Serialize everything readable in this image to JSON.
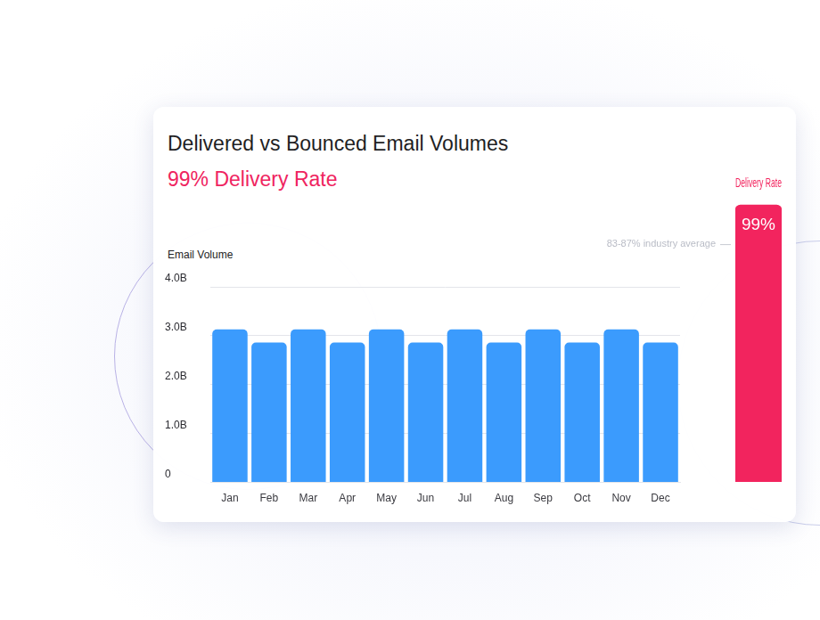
{
  "chart_data": [
    {
      "type": "bar",
      "title": "Delivered vs Bounced Email Volumes",
      "subtitle": "99% Delivery Rate",
      "y_label": "Email Volume",
      "categories": [
        "Jan",
        "Feb",
        "Mar",
        "Apr",
        "May",
        "Jun",
        "Jul",
        "Aug",
        "Sep",
        "Oct",
        "Nov",
        "Dec"
      ],
      "values": [
        3.13,
        2.86,
        3.13,
        2.86,
        3.13,
        2.86,
        3.13,
        2.86,
        3.13,
        2.86,
        3.13,
        2.86
      ],
      "color": "#3b9bfd",
      "ylim": [
        0,
        4
      ],
      "yticks": [
        0,
        {
          "value": 1,
          "label": "1.0B"
        },
        {
          "value": 2,
          "label": "2.0B"
        },
        {
          "value": 3,
          "label": "3.0B"
        },
        {
          "value": 4,
          "label": "4.0B"
        }
      ],
      "grid": true
    },
    {
      "type": "bar",
      "title": "Delivery Rate",
      "categories": [
        null
      ],
      "values": [
        99
      ],
      "value_labels": [
        "99%"
      ],
      "data_labels": true,
      "color": "#f2245e",
      "ylim": [
        0,
        100
      ],
      "tick_labels": false,
      "annotation": "83-87% industry average",
      "annotation_range": [
        83,
        87
      ]
    }
  ]
}
